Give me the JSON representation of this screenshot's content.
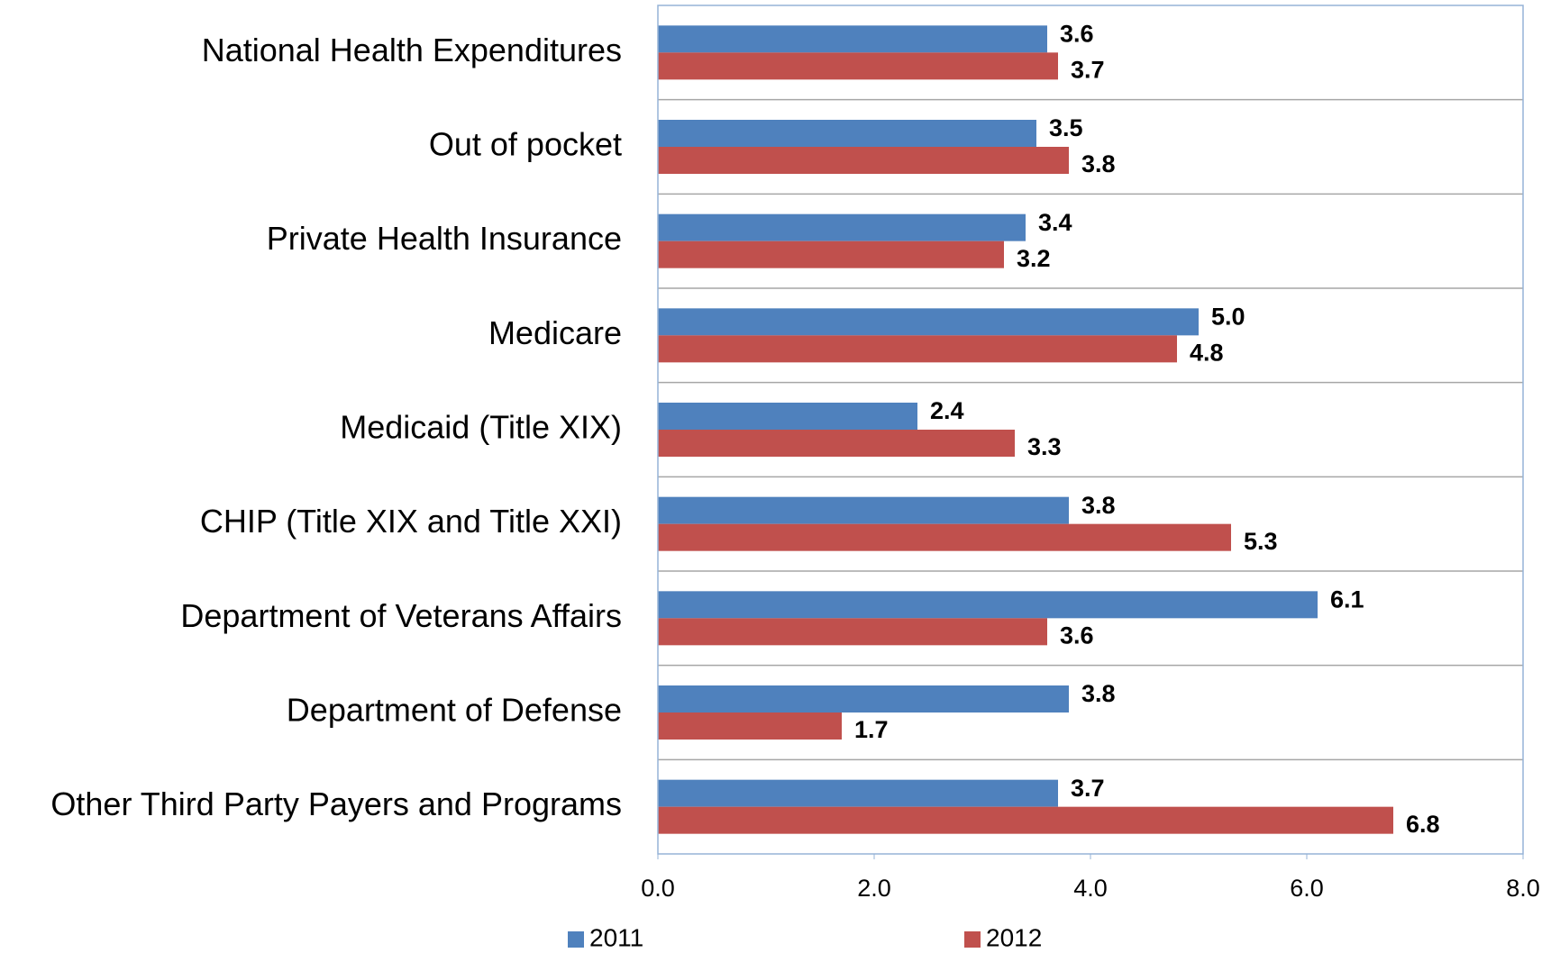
{
  "chart_data": {
    "type": "bar",
    "orientation": "horizontal",
    "categories": [
      "National Health Expenditures",
      "Out of pocket",
      "Private Health Insurance",
      "Medicare",
      "Medicaid (Title XIX)",
      "CHIP (Title XIX and Title XXI)",
      "Department of Veterans Affairs",
      "Department of Defense",
      "Other Third Party Payers and Programs"
    ],
    "series": [
      {
        "name": "2011",
        "color": "#4f81bd",
        "values": [
          3.6,
          3.5,
          3.4,
          5.0,
          2.4,
          3.8,
          6.1,
          3.8,
          3.7
        ],
        "value_labels": [
          "3.6",
          "3.5",
          "3.4",
          "5.0",
          "2.4",
          "3.8",
          "6.1",
          "3.8",
          "3.7"
        ]
      },
      {
        "name": "2012",
        "color": "#c0504d",
        "values": [
          3.7,
          3.8,
          3.2,
          4.8,
          3.3,
          5.3,
          3.6,
          1.7,
          6.8
        ],
        "value_labels": [
          "3.7",
          "3.8",
          "3.2",
          "4.8",
          "3.3",
          "5.3",
          "3.6",
          "1.7",
          "6.8"
        ]
      }
    ],
    "xlim": [
      0,
      8
    ],
    "xticks": [
      {
        "value": 0,
        "label": "0.0"
      },
      {
        "value": 2,
        "label": "2.0"
      },
      {
        "value": 4,
        "label": "4.0"
      },
      {
        "value": 6,
        "label": "6.0"
      },
      {
        "value": 8,
        "label": "8.0"
      }
    ],
    "legend": "bottom"
  }
}
